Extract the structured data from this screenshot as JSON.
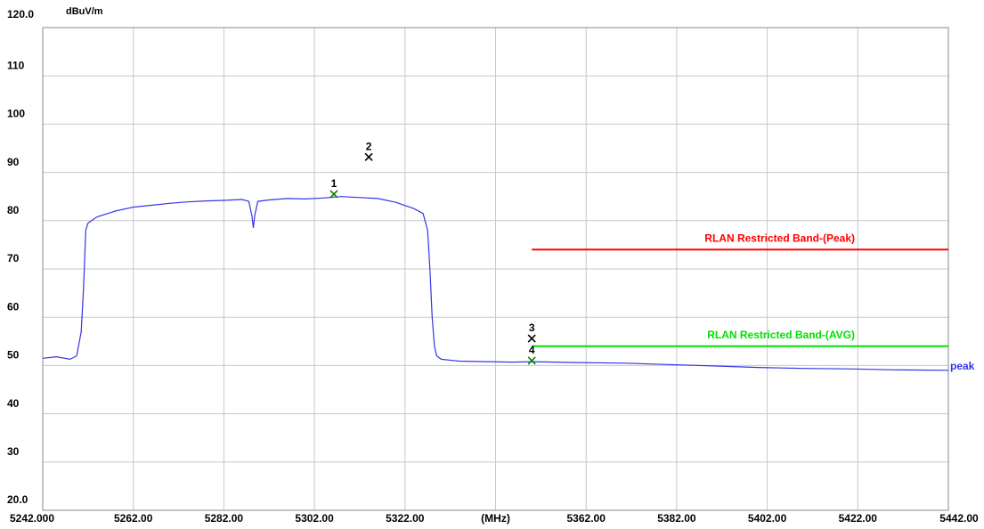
{
  "chart_data": {
    "type": "line",
    "y_label": "dBuV/m",
    "xlim": [
      5242,
      5442
    ],
    "ylim": [
      20,
      120
    ],
    "grid": true,
    "xticks": [
      {
        "value": 5242,
        "label": "5242.000"
      },
      {
        "value": 5262,
        "label": "5262.00"
      },
      {
        "value": 5282,
        "label": "5282.00"
      },
      {
        "value": 5302,
        "label": "5302.00"
      },
      {
        "value": 5322,
        "label": "5322.00"
      },
      {
        "value": 5342,
        "label": "(MHz)"
      },
      {
        "value": 5362,
        "label": "5362.00"
      },
      {
        "value": 5382,
        "label": "5382.00"
      },
      {
        "value": 5402,
        "label": "5402.00"
      },
      {
        "value": 5422,
        "label": "5422.00"
      },
      {
        "value": 5442,
        "label": "5442.00"
      }
    ],
    "yticks": [
      {
        "value": 20,
        "label": "20.0"
      },
      30,
      40,
      50,
      60,
      70,
      80,
      90,
      100,
      110,
      {
        "value": 120,
        "label": "120.0"
      }
    ],
    "series": [
      {
        "name": "peak",
        "color": "#3535e6",
        "x": [
          5242,
          5245,
          5248,
          5249.5,
          5250.5,
          5251,
          5251.5,
          5252,
          5254,
          5258,
          5262,
          5266,
          5270,
          5274,
          5278,
          5282,
          5286,
          5287.5,
          5288.2,
          5288.5,
          5288.8,
          5289.5,
          5292,
          5296,
          5300,
          5304,
          5308,
          5312,
          5316,
          5320,
          5324,
          5326,
          5327,
          5327.5,
          5328,
          5328.5,
          5329,
          5330,
          5334,
          5340,
          5346,
          5350,
          5360,
          5370,
          5380,
          5390,
          5400,
          5410,
          5420,
          5430,
          5442
        ],
        "values": [
          51.5,
          51.8,
          51.3,
          52,
          57,
          66,
          78,
          79.5,
          80.8,
          82,
          82.8,
          83.2,
          83.6,
          83.9,
          84.1,
          84.2,
          84.4,
          84,
          81,
          78.5,
          81,
          84,
          84.3,
          84.6,
          84.5,
          84.7,
          85.0,
          84.8,
          84.6,
          83.8,
          82.5,
          81.5,
          78,
          70,
          60,
          54,
          52,
          51.3,
          50.9,
          50.8,
          50.7,
          50.8,
          50.6,
          50.5,
          50.2,
          49.9,
          49.6,
          49.4,
          49.3,
          49.1,
          49.0
        ]
      },
      {
        "name": "RLAN Restricted Band-(Peak)",
        "color": "#ff0000",
        "x": [
          5350,
          5442
        ],
        "values": [
          74,
          74
        ]
      },
      {
        "name": "RLAN Restricted Band-(AVG)",
        "color": "#00e000",
        "x": [
          5350,
          5442
        ],
        "values": [
          54,
          54
        ]
      }
    ],
    "markers": [
      {
        "label": "1",
        "x": 5306.3,
        "value": 85.5,
        "color": "#008000"
      },
      {
        "label": "2",
        "x": 5314,
        "value": 93.2,
        "color": "#000000"
      },
      {
        "label": "3",
        "x": 5350,
        "value": 55.6,
        "color": "#000000"
      },
      {
        "label": "4",
        "x": 5350,
        "value": 51.0,
        "color": "#008000"
      }
    ]
  }
}
